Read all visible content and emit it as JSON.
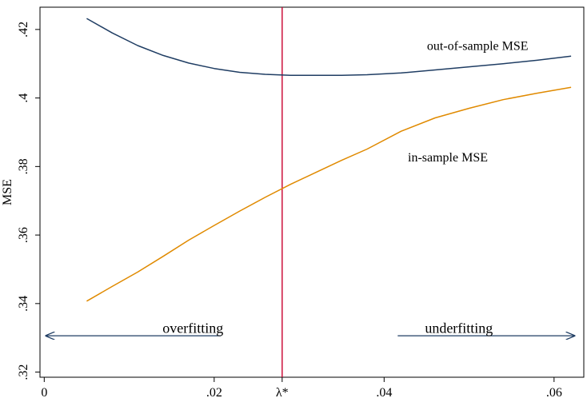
{
  "chart_data": {
    "type": "line",
    "title": "",
    "xlabel": "",
    "ylabel": "MSE",
    "xlim": [
      -0.0005,
      0.0635
    ],
    "ylim": [
      0.3185,
      0.4265
    ],
    "x_ticks": [
      {
        "value": 0,
        "label": "0"
      },
      {
        "value": 0.02,
        "label": ".02"
      },
      {
        "value": 0.04,
        "label": ".04"
      },
      {
        "value": 0.06,
        "label": ".06"
      }
    ],
    "y_ticks": [
      {
        "value": 0.32,
        "label": ".32"
      },
      {
        "value": 0.34,
        "label": ".34"
      },
      {
        "value": 0.36,
        "label": ".36"
      },
      {
        "value": 0.38,
        "label": ".38"
      },
      {
        "value": 0.4,
        "label": ".4"
      },
      {
        "value": 0.42,
        "label": ".42"
      }
    ],
    "grid": false,
    "legend": "none",
    "series": [
      {
        "name": "out-of-sample MSE",
        "color": "#1f3d63",
        "x": [
          0.005,
          0.008,
          0.011,
          0.014,
          0.017,
          0.02,
          0.023,
          0.026,
          0.029,
          0.032,
          0.035,
          0.038,
          0.042,
          0.046,
          0.05,
          0.054,
          0.058,
          0.062
        ],
        "y": [
          0.4232,
          0.419,
          0.4153,
          0.4124,
          0.4102,
          0.4086,
          0.4075,
          0.4069,
          0.4066,
          0.4066,
          0.4066,
          0.4068,
          0.4073,
          0.4082,
          0.4091,
          0.41,
          0.411,
          0.4122
        ]
      },
      {
        "name": "in-sample MSE",
        "color": "#e08a00",
        "x": [
          0.005,
          0.008,
          0.011,
          0.014,
          0.017,
          0.02,
          0.023,
          0.026,
          0.029,
          0.032,
          0.035,
          0.038,
          0.042,
          0.046,
          0.05,
          0.054,
          0.058,
          0.062
        ],
        "y": [
          0.3407,
          0.345,
          0.3492,
          0.3538,
          0.3585,
          0.3628,
          0.367,
          0.371,
          0.3748,
          0.3783,
          0.3818,
          0.3851,
          0.3903,
          0.3942,
          0.397,
          0.3995,
          0.4014,
          0.4031
        ]
      }
    ],
    "vline": {
      "x": 0.028,
      "label": "λ*",
      "color": "#c8002e"
    },
    "annotations": [
      {
        "text": "overfitting",
        "x": 0.0175,
        "y": 0.3315
      },
      {
        "text": "underfitting",
        "x": 0.0488,
        "y": 0.3315
      }
    ],
    "arrows": [
      {
        "from_x": 0.0208,
        "to_x": 0.0002,
        "y": 0.3306,
        "color": "#1f3d63"
      },
      {
        "from_x": 0.0416,
        "to_x": 0.0624,
        "y": 0.3306,
        "color": "#1f3d63"
      }
    ],
    "series_labels": [
      {
        "text": "out-of-sample MSE",
        "x": 0.051,
        "y": 0.414
      },
      {
        "text": "in-sample MSE",
        "x": 0.0475,
        "y": 0.3815
      }
    ]
  }
}
